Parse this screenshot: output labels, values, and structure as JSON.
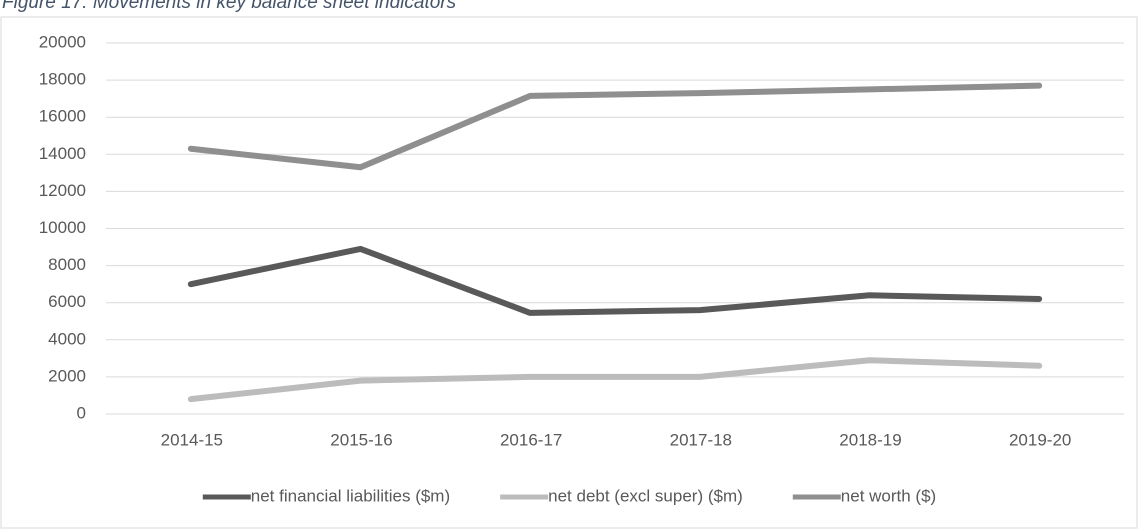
{
  "chart_data": {
    "type": "line",
    "title": "Figure 17: Movements in key balance sheet indicators",
    "categories": [
      "2014-15",
      "2015-16",
      "2016-17",
      "2017-18",
      "2018-19",
      "2019-20"
    ],
    "series": [
      {
        "name": "net financial liabilities ($m)",
        "color": "#595959",
        "values": [
          7000,
          8900,
          5450,
          5600,
          6400,
          6200
        ]
      },
      {
        "name": "net debt (excl super)  ($m)",
        "color": "#bcbcbc",
        "values": [
          800,
          1800,
          2000,
          2000,
          2900,
          2600
        ]
      },
      {
        "name": "net worth ($)",
        "color": "#8f8f8f",
        "values": [
          14300,
          13300,
          17150,
          17300,
          17500,
          17700
        ]
      }
    ],
    "ylim": [
      0,
      20000
    ],
    "yticks": [
      0,
      2000,
      4000,
      6000,
      8000,
      10000,
      12000,
      14000,
      16000,
      18000,
      20000
    ],
    "grid": true,
    "legend": "bottom"
  }
}
